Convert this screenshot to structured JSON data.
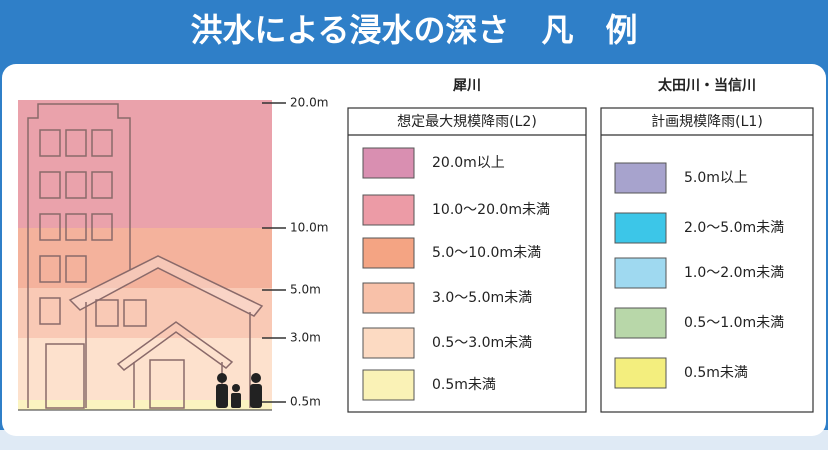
{
  "header": {
    "title": "洪水による浸水の深さ　凡　例"
  },
  "scale": {
    "labels": [
      "20.0m",
      "10.0m",
      "5.0m",
      "3.0m",
      "0.5m"
    ]
  },
  "legends": [
    {
      "river": "犀川",
      "subtitle": "想定最大規模降雨(L2)",
      "items": [
        {
          "label": "20.0m以上",
          "color": "#d98fb1"
        },
        {
          "label": "10.0～20.0m未満",
          "color": "#ec9ba6"
        },
        {
          "label": "5.0～10.0m未満",
          "color": "#f4a483"
        },
        {
          "label": "3.0～5.0m未満",
          "color": "#f8c1a9"
        },
        {
          "label": "0.5～3.0m未満",
          "color": "#fcdac2"
        },
        {
          "label": "0.5m未満",
          "color": "#faf2b6"
        }
      ]
    },
    {
      "river": "太田川・当信川",
      "subtitle": "計画規模降雨(L1)",
      "items": [
        {
          "label": "5.0m以上",
          "color": "#a7a3cd"
        },
        {
          "label": "2.0～5.0m未満",
          "color": "#3cc6e8"
        },
        {
          "label": "1.0～2.0m未満",
          "color": "#9fd9f0"
        },
        {
          "label": "0.5～1.0m未満",
          "color": "#b8d7a9"
        },
        {
          "label": "0.5m未満",
          "color": "#f3ee7e"
        }
      ]
    }
  ]
}
